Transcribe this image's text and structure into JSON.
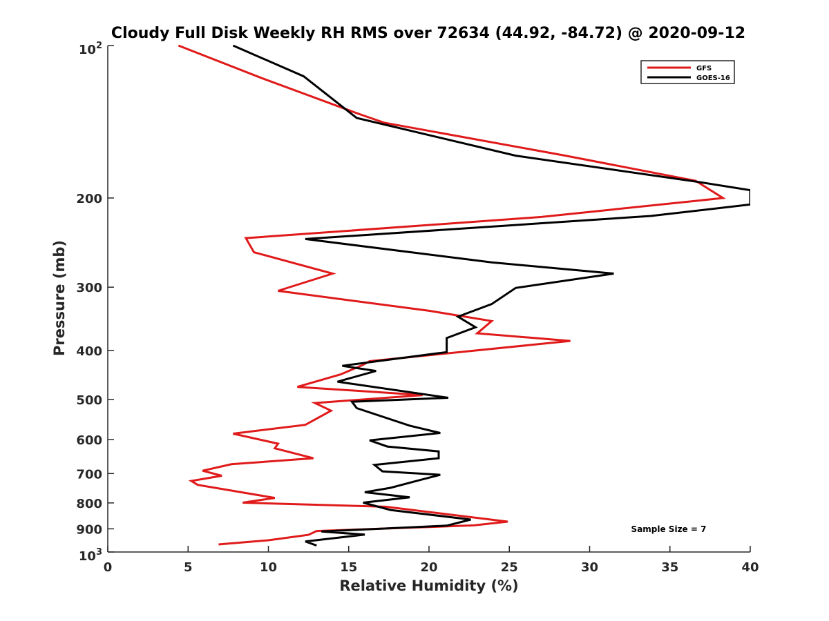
{
  "chart_data": {
    "type": "line",
    "title": "Cloudy Full Disk Weekly RH RMS over 72634 (44.92, -84.72) @ 2020-09-12",
    "xlabel": "Relative Humidity (%)",
    "ylabel": "Pressure (mb)",
    "xlim": [
      0,
      40
    ],
    "ylim": [
      100,
      1000
    ],
    "yscale": "log",
    "y_reversed": true,
    "x_ticks": [
      "0",
      "5",
      "10",
      "15",
      "20",
      "25",
      "30",
      "35",
      "40"
    ],
    "y_ticks": [
      {
        "value": 100,
        "base": "10",
        "exp": "2"
      },
      {
        "value": 200,
        "label": "200"
      },
      {
        "value": 300,
        "label": "300"
      },
      {
        "value": 400,
        "label": "400"
      },
      {
        "value": 500,
        "label": "500"
      },
      {
        "value": 600,
        "label": "600"
      },
      {
        "value": 700,
        "label": "700"
      },
      {
        "value": 800,
        "label": "800"
      },
      {
        "value": 900,
        "label": "900"
      },
      {
        "value": 1000,
        "base": "10",
        "exp": "3"
      }
    ],
    "legend_position": "top-right",
    "annotation": "Sample Size = 7",
    "series": [
      {
        "name": "GFS",
        "color": "#e01a1a",
        "points": [
          [
            4.4,
            100
          ],
          [
            9.6,
            116
          ],
          [
            15.5,
            136
          ],
          [
            17.2,
            142
          ],
          [
            28.5,
            165
          ],
          [
            36.6,
            185
          ],
          [
            38.3,
            200
          ],
          [
            27.0,
            218
          ],
          [
            8.6,
            240
          ],
          [
            9.1,
            256
          ],
          [
            14.0,
            282
          ],
          [
            10.6,
            305
          ],
          [
            20.0,
            334
          ],
          [
            23.9,
            350
          ],
          [
            23.0,
            370
          ],
          [
            28.8,
            383
          ],
          [
            16.3,
            420
          ],
          [
            15.9,
            427
          ],
          [
            14.5,
            446
          ],
          [
            11.8,
            472
          ],
          [
            19.6,
            490
          ],
          [
            12.9,
            508
          ],
          [
            13.9,
            526
          ],
          [
            12.3,
            561
          ],
          [
            7.8,
            584
          ],
          [
            10.6,
            611
          ],
          [
            10.4,
            624
          ],
          [
            12.8,
            653
          ],
          [
            7.7,
            671
          ],
          [
            5.9,
            691
          ],
          [
            7.1,
            707
          ],
          [
            5.2,
            724
          ],
          [
            5.6,
            737
          ],
          [
            10.4,
            782
          ],
          [
            8.4,
            799
          ],
          [
            17.3,
            814
          ],
          [
            24.9,
            871
          ],
          [
            22.8,
            886
          ],
          [
            13.0,
            909
          ],
          [
            12.5,
            925
          ],
          [
            10.0,
            948
          ],
          [
            6.9,
            966
          ]
        ]
      },
      {
        "name": "GOES-16",
        "color": "#000000",
        "points": [
          [
            7.8,
            100
          ],
          [
            12.2,
            115
          ],
          [
            15.5,
            139
          ],
          [
            25.4,
            165
          ],
          [
            36.8,
            186
          ],
          [
            40.0,
            193
          ],
          [
            40.0,
            206
          ],
          [
            33.8,
            217
          ],
          [
            12.3,
            241
          ],
          [
            23.9,
            268
          ],
          [
            31.5,
            282
          ],
          [
            25.4,
            301
          ],
          [
            23.9,
            324
          ],
          [
            21.8,
            343
          ],
          [
            22.9,
            360
          ],
          [
            21.1,
            378
          ],
          [
            21.1,
            403
          ],
          [
            14.6,
            429
          ],
          [
            16.7,
            439
          ],
          [
            14.3,
            461
          ],
          [
            21.2,
            496
          ],
          [
            15.2,
            505
          ],
          [
            15.5,
            520
          ],
          [
            18.8,
            563
          ],
          [
            20.7,
            582
          ],
          [
            16.3,
            602
          ],
          [
            17.4,
            619
          ],
          [
            20.6,
            633
          ],
          [
            20.6,
            653
          ],
          [
            16.6,
            673
          ],
          [
            17.1,
            693
          ],
          [
            20.7,
            704
          ],
          [
            19.5,
            720
          ],
          [
            17.6,
            747
          ],
          [
            16.0,
            762
          ],
          [
            18.8,
            780
          ],
          [
            15.9,
            799
          ],
          [
            17.6,
            826
          ],
          [
            22.6,
            863
          ],
          [
            21.1,
            887
          ],
          [
            13.3,
            911
          ],
          [
            16.0,
            924
          ],
          [
            12.3,
            953
          ],
          [
            13.0,
            971
          ]
        ]
      }
    ]
  }
}
